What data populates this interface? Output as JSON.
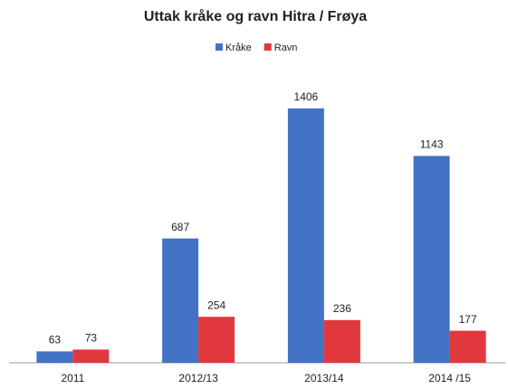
{
  "chart_data": {
    "type": "bar",
    "title": "Uttak kråke og ravn Hitra / Frøya",
    "categories": [
      "2011",
      "2012/13",
      "2013/14",
      "2014 /15"
    ],
    "series": [
      {
        "name": "Kråke",
        "color": "#4472c4",
        "values": [
          63,
          687,
          1406,
          1143
        ]
      },
      {
        "name": "Ravn",
        "color": "#e0383c",
        "values": [
          73,
          254,
          236,
          177
        ]
      }
    ],
    "ylim": [
      0,
      1500
    ],
    "legend": "top"
  }
}
